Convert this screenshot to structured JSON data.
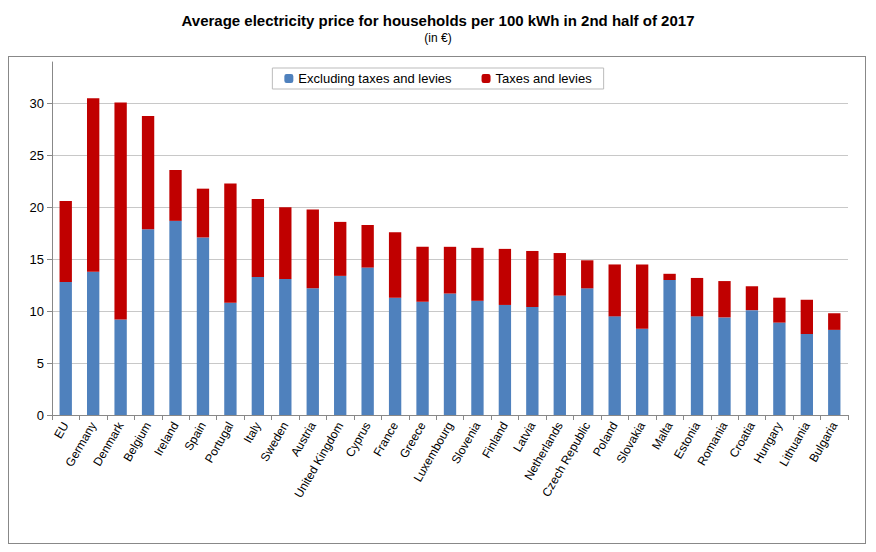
{
  "chart_data": {
    "type": "bar",
    "title": "Average electricity price for households per 100 kWh in 2nd half of 2017",
    "subtitle": "(in €)",
    "categories": [
      "EU",
      "Germany",
      "Denmark",
      "Belgium",
      "Ireland",
      "Spain",
      "Portugal",
      "Italy",
      "Sweden",
      "Austria",
      "United Kingdom",
      "Cyprus",
      "France",
      "Greece",
      "Luxembourg",
      "Slovenia",
      "Finland",
      "Latvia",
      "Netherlands",
      "Czech Republic",
      "Poland",
      "Slovakia",
      "Malta",
      "Estonia",
      "Romania",
      "Croatia",
      "Hungary",
      "Lithuania",
      "Bulgaria"
    ],
    "series": [
      {
        "name": "Excluding taxes and levies",
        "color": "#4f81bd",
        "values": [
          12.8,
          13.8,
          9.2,
          17.9,
          18.7,
          17.1,
          10.8,
          13.3,
          13.1,
          12.2,
          13.4,
          14.2,
          11.3,
          10.9,
          11.7,
          11.0,
          10.6,
          10.4,
          11.5,
          12.2,
          9.5,
          8.3,
          13.0,
          9.5,
          9.4,
          10.1,
          8.9,
          7.8,
          8.2
        ]
      },
      {
        "name": "Taxes and levies",
        "color": "#c00000",
        "values": [
          7.8,
          16.7,
          20.9,
          10.9,
          4.9,
          4.7,
          11.5,
          7.5,
          6.9,
          7.6,
          5.2,
          4.1,
          6.3,
          5.3,
          4.5,
          5.1,
          5.4,
          5.4,
          4.1,
          2.7,
          5.0,
          6.2,
          0.6,
          3.7,
          3.5,
          2.3,
          2.4,
          3.3,
          1.6
        ]
      }
    ],
    "ylim": [
      0,
      34
    ],
    "yticks": [
      0,
      5,
      10,
      15,
      20,
      25,
      30
    ],
    "stacked": true,
    "grid": true,
    "legend": "top"
  }
}
